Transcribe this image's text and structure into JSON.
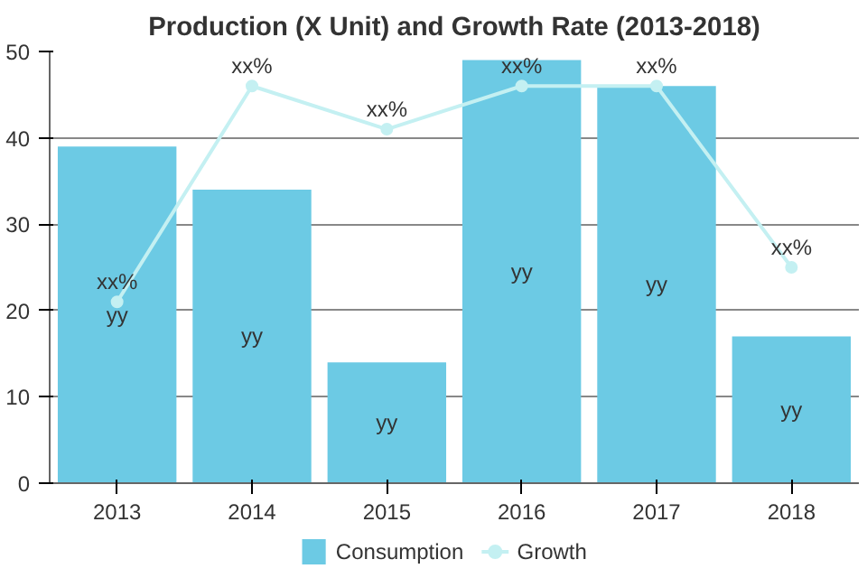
{
  "chart_data": {
    "type": "bar",
    "title": "Production (X Unit) and Growth Rate (2013-2018)",
    "categories": [
      "2013",
      "2014",
      "2015",
      "2016",
      "2017",
      "2018"
    ],
    "series": [
      {
        "name": "Consumption",
        "color": "#6ccae4",
        "values": [
          39,
          34,
          14,
          49,
          46,
          17
        ],
        "value_labels": [
          "yy",
          "yy",
          "yy",
          "yy",
          "yy",
          "yy"
        ]
      },
      {
        "name": "Growth",
        "type": "line",
        "color": "#c4f0f2",
        "marker": "circle",
        "values": [
          21,
          46,
          41,
          46,
          46,
          25
        ],
        "value_labels": [
          "xx%",
          "xx%",
          "xx%",
          "xx%",
          "xx%",
          "xx%"
        ]
      }
    ],
    "ylim": [
      0,
      50
    ],
    "yticks": [
      0,
      10,
      20,
      30,
      40,
      50
    ],
    "grid": "y",
    "legend": "bottom"
  }
}
